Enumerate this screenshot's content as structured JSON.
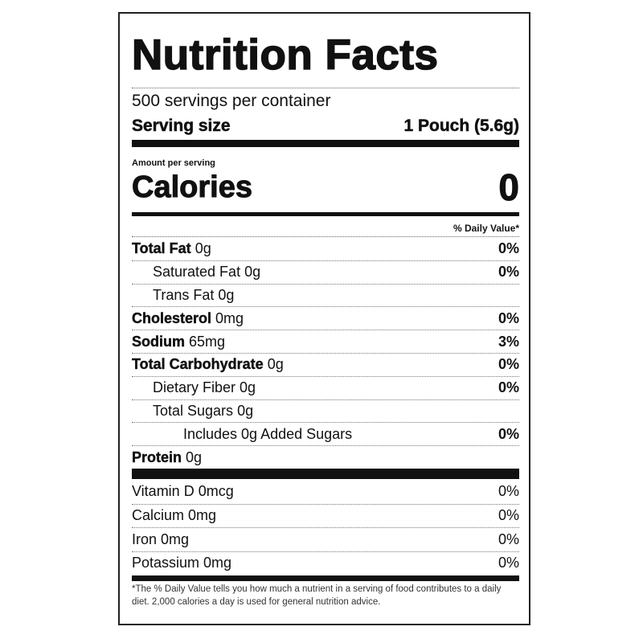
{
  "title": "Nutrition Facts",
  "servings_per_container": "500 servings per container",
  "serving_size": {
    "label": "Serving size",
    "value": "1 Pouch (5.6g)"
  },
  "amount_per_serving": "Amount per serving",
  "calories": {
    "label": "Calories",
    "value": "0"
  },
  "daily_value_header": "% Daily Value*",
  "nutrients": [
    {
      "name": "Total Fat",
      "amount": "0g",
      "dv": "0%",
      "bold": true,
      "indent": 0
    },
    {
      "name": "Saturated Fat",
      "amount": "0g",
      "dv": "0%",
      "bold": false,
      "indent": 1
    },
    {
      "name": "Trans Fat",
      "amount": "0g",
      "dv": "",
      "bold": false,
      "indent": 1
    },
    {
      "name": "Cholesterol",
      "amount": "0mg",
      "dv": "0%",
      "bold": true,
      "indent": 0
    },
    {
      "name": "Sodium",
      "amount": "65mg",
      "dv": "3%",
      "bold": true,
      "indent": 0
    },
    {
      "name": "Total Carbohydrate",
      "amount": "0g",
      "dv": "0%",
      "bold": true,
      "indent": 0
    },
    {
      "name": "Dietary Fiber",
      "amount": "0g",
      "dv": "0%",
      "bold": false,
      "indent": 1
    },
    {
      "name": "Total Sugars",
      "amount": "0g",
      "dv": "",
      "bold": false,
      "indent": 1
    },
    {
      "name": "Includes 0g Added Sugars",
      "amount": "",
      "dv": "0%",
      "bold": false,
      "indent": 2
    },
    {
      "name": "Protein",
      "amount": "0g",
      "dv": "",
      "bold": true,
      "indent": 0
    }
  ],
  "vitamins": [
    {
      "name": "Vitamin D 0mcg",
      "dv": "0%"
    },
    {
      "name": "Calcium 0mg",
      "dv": "0%"
    },
    {
      "name": "Iron 0mg",
      "dv": "0%"
    },
    {
      "name": "Potassium 0mg",
      "dv": "0%"
    }
  ],
  "footnote": "*The % Daily Value tells you how much a nutrient in a serving of food contributes to a daily diet. 2,000 calories a day is used for general nutrition advice."
}
